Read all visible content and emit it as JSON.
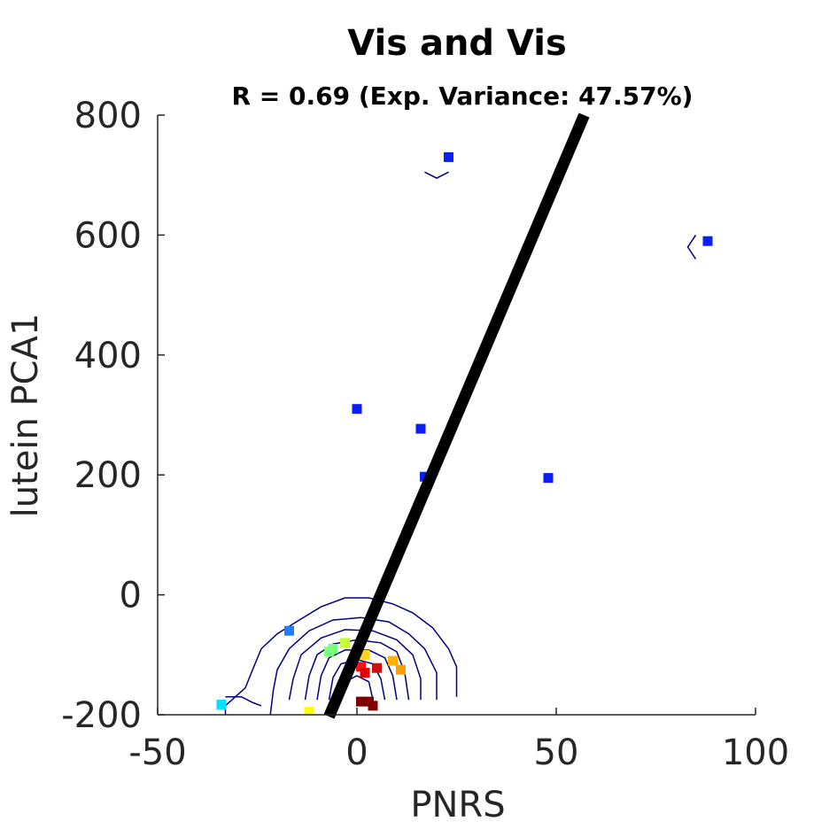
{
  "chart_data": {
    "type": "scatter",
    "title": "Vis and Vis",
    "subtitle": "R = 0.69 (Exp. Variance: 47.57%)",
    "xlabel": "PNRS",
    "ylabel": "lutein PCA1",
    "xlim": [
      -50,
      100
    ],
    "ylim": [
      -200,
      800
    ],
    "xticks": [
      -50,
      0,
      50,
      100
    ],
    "yticks": [
      -200,
      0,
      200,
      400,
      600,
      800
    ],
    "grid": false,
    "legend": "none",
    "points": [
      {
        "x": 23,
        "y": 730,
        "color": "#0a1ef5"
      },
      {
        "x": 88,
        "y": 590,
        "color": "#0a1ef5"
      },
      {
        "x": 0,
        "y": 310,
        "color": "#0a1ef5"
      },
      {
        "x": 16,
        "y": 277,
        "color": "#0a1ef5"
      },
      {
        "x": 17,
        "y": 197,
        "color": "#0a1ef5"
      },
      {
        "x": 48,
        "y": 195,
        "color": "#0a1ef5"
      },
      {
        "x": -17,
        "y": -60,
        "color": "#1f7dff"
      },
      {
        "x": -7,
        "y": -95,
        "color": "#7cff7c"
      },
      {
        "x": -6,
        "y": -90,
        "color": "#7cff7c"
      },
      {
        "x": -3,
        "y": -80,
        "color": "#c8ff3c"
      },
      {
        "x": 2,
        "y": -100,
        "color": "#ffd21e"
      },
      {
        "x": 9,
        "y": -110,
        "color": "#ffb000"
      },
      {
        "x": 11,
        "y": -125,
        "color": "#ffa000"
      },
      {
        "x": 1,
        "y": -120,
        "color": "#ff1010"
      },
      {
        "x": 2,
        "y": -130,
        "color": "#e00000"
      },
      {
        "x": 5,
        "y": -122,
        "color": "#d01010"
      },
      {
        "x": 1,
        "y": -178,
        "color": "#800000"
      },
      {
        "x": 3,
        "y": -178,
        "color": "#800000"
      },
      {
        "x": 4,
        "y": -185,
        "color": "#800000"
      },
      {
        "x": -34,
        "y": -183,
        "color": "#00e0ff"
      },
      {
        "x": -12,
        "y": -195,
        "color": "#ffff00"
      }
    ],
    "fit_line": {
      "x": [
        -7,
        57
      ],
      "y": [
        -200,
        800
      ],
      "color": "#000000"
    },
    "contour_color": "#000080"
  }
}
